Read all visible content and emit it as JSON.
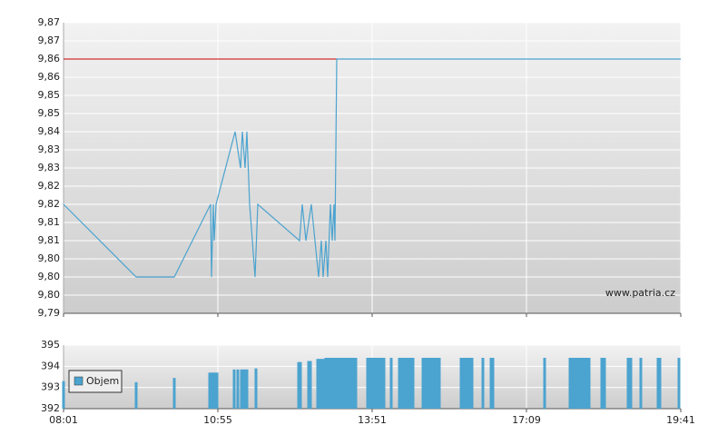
{
  "chart_data": [
    {
      "type": "line",
      "color": "#4ba3cf",
      "x": [
        0,
        80,
        122,
        162,
        163,
        165,
        166,
        168,
        189,
        195,
        197,
        200,
        202,
        205,
        211,
        214,
        260,
        263,
        267,
        273,
        281,
        284,
        286,
        289,
        291,
        294,
        296,
        298,
        299,
        301,
        680
      ],
      "values": [
        9.82,
        9.8,
        9.8,
        9.82,
        9.8,
        9.82,
        9.81,
        9.82,
        9.84,
        9.83,
        9.84,
        9.83,
        9.84,
        9.82,
        9.8,
        9.82,
        9.81,
        9.82,
        9.81,
        9.82,
        9.8,
        9.81,
        9.8,
        9.81,
        9.8,
        9.82,
        9.81,
        9.82,
        9.81,
        9.86,
        9.86
      ],
      "reference_line": {
        "value": 9.86,
        "color": "#cc0000"
      },
      "xlim": [
        0,
        680
      ],
      "ylim": [
        9.79,
        9.87
      ],
      "yticks": [
        {
          "value": 9.79,
          "label": "9,79"
        },
        {
          "value": 9.795,
          "label": "9,80"
        },
        {
          "value": 9.8,
          "label": "9,80"
        },
        {
          "value": 9.805,
          "label": "9,80"
        },
        {
          "value": 9.81,
          "label": "9,81"
        },
        {
          "value": 9.815,
          "label": "9,81"
        },
        {
          "value": 9.82,
          "label": "9,82"
        },
        {
          "value": 9.825,
          "label": "9,82"
        },
        {
          "value": 9.83,
          "label": "9,83"
        },
        {
          "value": 9.835,
          "label": "9,83"
        },
        {
          "value": 9.84,
          "label": "9,84"
        },
        {
          "value": 9.845,
          "label": "9,85"
        },
        {
          "value": 9.85,
          "label": "9,85"
        },
        {
          "value": 9.855,
          "label": "9,86"
        },
        {
          "value": 9.86,
          "label": "9,86"
        },
        {
          "value": 9.865,
          "label": "9,87"
        },
        {
          "value": 9.87,
          "label": "9,87"
        }
      ],
      "grid": true,
      "annotation": "www.patria.cz"
    },
    {
      "type": "bar",
      "series": [
        {
          "name": "Objem",
          "color": "#4ba3cf",
          "x": [
            0,
            80,
            122,
            161,
            163,
            165,
            167,
            169,
            188,
            192,
            196,
            198,
            200,
            202,
            212,
            259,
            261,
            270,
            272,
            280,
            283,
            286,
            289,
            292,
            295,
            298,
            301,
            304,
            307,
            310,
            313,
            316,
            319,
            322,
            335,
            338,
            341,
            344,
            347,
            350,
            353,
            361,
            370,
            373,
            376,
            379,
            382,
            385,
            396,
            399,
            402,
            405,
            408,
            411,
            414,
            438,
            441,
            444,
            447,
            450,
            462,
            471,
            473,
            530,
            558,
            561,
            564,
            567,
            570,
            573,
            576,
            579,
            593,
            596,
            622,
            625,
            636,
            655,
            657,
            678
          ],
          "values": [
            393.3,
            393.25,
            393.45,
            393.7,
            393.7,
            393.7,
            393.7,
            393.7,
            393.85,
            393.85,
            393.85,
            393.85,
            393.85,
            393.85,
            393.9,
            394.2,
            394.2,
            394.25,
            394.25,
            394.35,
            394.35,
            394.35,
            394.4,
            394.4,
            394.4,
            394.4,
            394.4,
            394.4,
            394.4,
            394.4,
            394.4,
            394.4,
            394.4,
            394.4,
            394.4,
            394.4,
            394.4,
            394.4,
            394.4,
            394.4,
            394.4,
            394.4,
            394.4,
            394.4,
            394.4,
            394.4,
            394.4,
            394.4,
            394.4,
            394.4,
            394.4,
            394.4,
            394.4,
            394.4,
            394.4,
            394.4,
            394.4,
            394.4,
            394.4,
            394.4,
            394.4,
            394.4,
            394.4,
            394.4,
            394.4,
            394.4,
            394.4,
            394.4,
            394.4,
            394.4,
            394.4,
            394.4,
            394.4,
            394.4,
            394.4,
            394.4,
            394.4,
            394.4,
            394.4,
            394.4
          ]
        }
      ],
      "xlim": [
        0,
        680
      ],
      "ylim": [
        392,
        395
      ],
      "yticks": [
        392,
        393,
        394,
        395
      ],
      "xticks": [
        {
          "value": 0,
          "label": "08:01"
        },
        {
          "value": 170,
          "label": "10:55"
        },
        {
          "value": 340,
          "label": "13:51"
        },
        {
          "value": 510,
          "label": "17:09"
        },
        {
          "value": 680,
          "label": "19:41"
        }
      ],
      "grid": true,
      "legend": "upper left"
    }
  ]
}
